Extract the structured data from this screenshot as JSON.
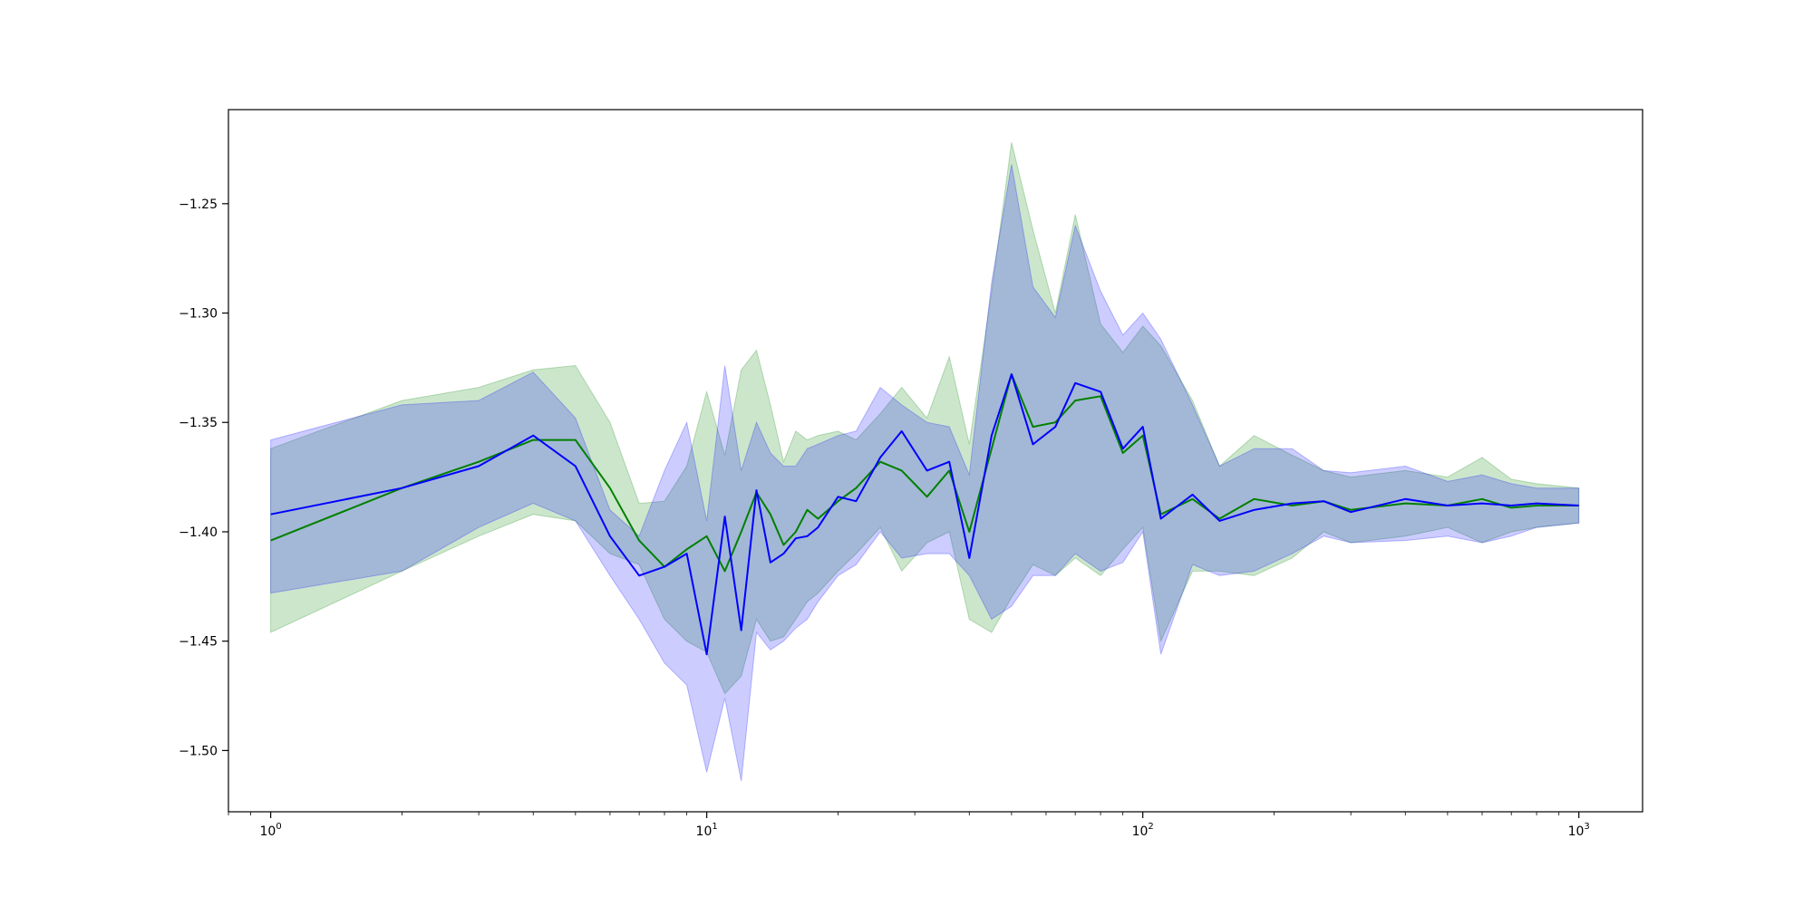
{
  "chart_data": {
    "type": "line",
    "title": "",
    "xlabel": "",
    "ylabel": "",
    "x_scale": "log",
    "xlim": [
      0.8,
      1400
    ],
    "ylim": [
      -1.528,
      -1.207
    ],
    "grid": false,
    "x_ticks": [
      {
        "value": 1,
        "base": "10",
        "exp": "0"
      },
      {
        "value": 10,
        "base": "10",
        "exp": "1"
      },
      {
        "value": 100,
        "base": "10",
        "exp": "2"
      },
      {
        "value": 1000,
        "base": "10",
        "exp": "3"
      }
    ],
    "y_ticks": [
      {
        "value": -1.25,
        "label": "−1.25"
      },
      {
        "value": -1.3,
        "label": "−1.30"
      },
      {
        "value": -1.35,
        "label": "−1.35"
      },
      {
        "value": -1.4,
        "label": "−1.40"
      },
      {
        "value": -1.45,
        "label": "−1.45"
      },
      {
        "value": -1.5,
        "label": "−1.50"
      }
    ],
    "colors": {
      "green_line": "#008000",
      "green_band": "#008000",
      "blue_line": "#0000ff",
      "blue_band": "#0000ff"
    },
    "series": [
      {
        "color": "green",
        "x": [
          1,
          2,
          3,
          4,
          5,
          6,
          7,
          8,
          9,
          10,
          11,
          12,
          13,
          14,
          15,
          16,
          17,
          18,
          20,
          22,
          25,
          28,
          32,
          36,
          40,
          45,
          50,
          56,
          63,
          70,
          80,
          90,
          100,
          110,
          130,
          150,
          180,
          220,
          260,
          300,
          400,
          500,
          600,
          700,
          800,
          1000
        ],
        "y": [
          -1.404,
          -1.38,
          -1.368,
          -1.358,
          -1.358,
          -1.38,
          -1.404,
          -1.416,
          -1.408,
          -1.402,
          -1.418,
          -1.4,
          -1.382,
          -1.392,
          -1.406,
          -1.4,
          -1.39,
          -1.394,
          -1.386,
          -1.38,
          -1.368,
          -1.372,
          -1.384,
          -1.372,
          -1.4,
          -1.362,
          -1.328,
          -1.352,
          -1.35,
          -1.34,
          -1.338,
          -1.364,
          -1.356,
          -1.392,
          -1.385,
          -1.394,
          -1.385,
          -1.388,
          -1.386,
          -1.39,
          -1.387,
          -1.388,
          -1.385,
          -1.389,
          -1.388,
          -1.388
        ],
        "lower": [
          -1.446,
          -1.418,
          -1.402,
          -1.392,
          -1.395,
          -1.41,
          -1.415,
          -1.44,
          -1.45,
          -1.455,
          -1.474,
          -1.466,
          -1.44,
          -1.45,
          -1.448,
          -1.44,
          -1.432,
          -1.428,
          -1.418,
          -1.41,
          -1.398,
          -1.418,
          -1.405,
          -1.4,
          -1.44,
          -1.446,
          -1.43,
          -1.415,
          -1.42,
          -1.412,
          -1.42,
          -1.408,
          -1.398,
          -1.45,
          -1.418,
          -1.418,
          -1.42,
          -1.412,
          -1.4,
          -1.405,
          -1.402,
          -1.398,
          -1.405,
          -1.4,
          -1.398,
          -1.396
        ],
        "upper": [
          -1.362,
          -1.34,
          -1.334,
          -1.326,
          -1.324,
          -1.35,
          -1.387,
          -1.386,
          -1.37,
          -1.336,
          -1.365,
          -1.326,
          -1.317,
          -1.342,
          -1.368,
          -1.354,
          -1.358,
          -1.356,
          -1.354,
          -1.358,
          -1.346,
          -1.334,
          -1.348,
          -1.32,
          -1.36,
          -1.29,
          -1.222,
          -1.262,
          -1.3,
          -1.255,
          -1.305,
          -1.318,
          -1.306,
          -1.315,
          -1.34,
          -1.37,
          -1.356,
          -1.365,
          -1.372,
          -1.375,
          -1.372,
          -1.375,
          -1.366,
          -1.376,
          -1.378,
          -1.38
        ]
      },
      {
        "color": "blue",
        "x": [
          1,
          2,
          3,
          4,
          5,
          6,
          7,
          8,
          9,
          10,
          11,
          12,
          13,
          14,
          15,
          16,
          17,
          18,
          20,
          22,
          25,
          28,
          32,
          36,
          40,
          45,
          50,
          56,
          63,
          70,
          80,
          90,
          100,
          110,
          130,
          150,
          180,
          220,
          260,
          300,
          400,
          500,
          600,
          700,
          800,
          1000
        ],
        "y": [
          -1.392,
          -1.38,
          -1.37,
          -1.356,
          -1.37,
          -1.402,
          -1.42,
          -1.416,
          -1.41,
          -1.456,
          -1.393,
          -1.445,
          -1.381,
          -1.414,
          -1.41,
          -1.403,
          -1.402,
          -1.398,
          -1.384,
          -1.386,
          -1.366,
          -1.354,
          -1.372,
          -1.368,
          -1.412,
          -1.356,
          -1.328,
          -1.36,
          -1.352,
          -1.332,
          -1.336,
          -1.362,
          -1.352,
          -1.394,
          -1.383,
          -1.395,
          -1.39,
          -1.387,
          -1.386,
          -1.391,
          -1.385,
          -1.388,
          -1.387,
          -1.388,
          -1.387,
          -1.388
        ],
        "lower": [
          -1.428,
          -1.418,
          -1.398,
          -1.387,
          -1.395,
          -1.42,
          -1.44,
          -1.46,
          -1.47,
          -1.51,
          -1.476,
          -1.514,
          -1.446,
          -1.454,
          -1.45,
          -1.444,
          -1.44,
          -1.432,
          -1.42,
          -1.415,
          -1.4,
          -1.412,
          -1.41,
          -1.41,
          -1.42,
          -1.44,
          -1.434,
          -1.42,
          -1.42,
          -1.41,
          -1.418,
          -1.414,
          -1.4,
          -1.456,
          -1.415,
          -1.42,
          -1.418,
          -1.41,
          -1.402,
          -1.405,
          -1.404,
          -1.402,
          -1.405,
          -1.402,
          -1.398,
          -1.396
        ],
        "upper": [
          -1.358,
          -1.342,
          -1.34,
          -1.327,
          -1.348,
          -1.39,
          -1.402,
          -1.372,
          -1.35,
          -1.395,
          -1.324,
          -1.372,
          -1.35,
          -1.364,
          -1.37,
          -1.37,
          -1.362,
          -1.36,
          -1.356,
          -1.354,
          -1.334,
          -1.342,
          -1.35,
          -1.352,
          -1.374,
          -1.286,
          -1.232,
          -1.288,
          -1.302,
          -1.26,
          -1.29,
          -1.31,
          -1.3,
          -1.312,
          -1.342,
          -1.37,
          -1.362,
          -1.362,
          -1.372,
          -1.373,
          -1.37,
          -1.377,
          -1.374,
          -1.378,
          -1.38,
          -1.38
        ]
      }
    ]
  }
}
